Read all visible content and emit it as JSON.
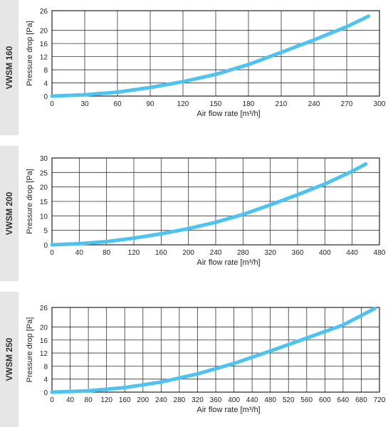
{
  "chart_data": [
    {
      "type": "line",
      "model": "VWSM 160",
      "xlabel": "Air flow rate [m³/h]",
      "ylabel": "Pressure drop [Pa]",
      "xlim": [
        0,
        300
      ],
      "ylim": [
        0,
        26
      ],
      "xticks": [
        0,
        30,
        60,
        90,
        120,
        150,
        180,
        210,
        240,
        270,
        300
      ],
      "yticks": [
        0,
        4,
        8,
        12,
        16,
        20,
        26
      ],
      "grid": true,
      "color": "#4fc3ef",
      "series": [
        {
          "x": [
            0,
            30,
            60,
            90,
            120,
            150,
            180,
            210,
            240,
            270,
            290
          ],
          "y": [
            0,
            0.4,
            1.2,
            2.6,
            4.4,
            6.6,
            9.6,
            13.3,
            17.1,
            21.1,
            24.3
          ]
        }
      ]
    },
    {
      "type": "line",
      "model": "VWSM 200",
      "xlabel": "Air flow rate [m³/h]",
      "ylabel": "Pressure drop [Pa]",
      "xlim": [
        0,
        480
      ],
      "ylim": [
        0,
        30
      ],
      "xticks": [
        0,
        40,
        80,
        120,
        160,
        200,
        240,
        280,
        320,
        360,
        400,
        440,
        480
      ],
      "yticks": [
        0,
        5,
        10,
        15,
        20,
        25,
        30
      ],
      "grid": true,
      "color": "#4fc3ef",
      "series": [
        {
          "x": [
            0,
            40,
            80,
            120,
            160,
            200,
            240,
            280,
            320,
            360,
            400,
            440,
            460
          ],
          "y": [
            0,
            0.4,
            1.1,
            2.3,
            3.8,
            5.6,
            7.8,
            10.5,
            13.8,
            17.3,
            21.0,
            25.4,
            27.9
          ]
        }
      ]
    },
    {
      "type": "line",
      "model": "VWSM 250",
      "xlabel": "Air flow rate [m³/h]",
      "ylabel": "Pressure drop [Pa]",
      "xlim": [
        0,
        720
      ],
      "ylim": [
        0,
        26
      ],
      "xticks": [
        0,
        40,
        80,
        120,
        160,
        200,
        240,
        280,
        320,
        360,
        400,
        440,
        480,
        520,
        560,
        600,
        640,
        680,
        720
      ],
      "yticks": [
        0,
        4,
        8,
        12,
        16,
        20,
        26
      ],
      "grid": true,
      "color": "#4fc3ef",
      "series": [
        {
          "x": [
            0,
            80,
            160,
            240,
            320,
            400,
            480,
            560,
            640,
            710
          ],
          "y": [
            0,
            0.4,
            1.4,
            3.1,
            5.6,
            8.8,
            12.6,
            16.6,
            20.6,
            25.7
          ]
        }
      ]
    }
  ]
}
